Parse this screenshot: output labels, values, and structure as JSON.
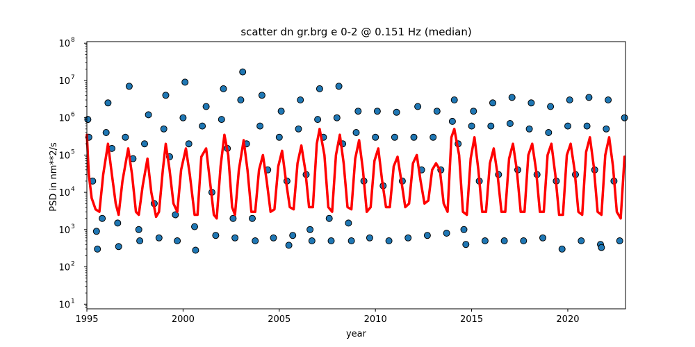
{
  "chart_data": {
    "type": "scatter",
    "title": "scatter dn gr.brg e 0-2 @ 0.151 Hz (median)",
    "xlabel": "year",
    "ylabel": "PSD in nm**2/s",
    "xlim": [
      1995.0,
      2023.0
    ],
    "ylim": [
      7.5,
      110000000
    ],
    "yscale": "log",
    "grid": false,
    "x_ticks": [
      1995,
      2000,
      2005,
      2010,
      2015,
      2020
    ],
    "y_ticks": [
      {
        "value": 10,
        "base": "10",
        "exp": "1"
      },
      {
        "value": 100,
        "base": "10",
        "exp": "2"
      },
      {
        "value": 1000,
        "base": "10",
        "exp": "3"
      },
      {
        "value": 10000,
        "base": "10",
        "exp": "4"
      },
      {
        "value": 100000,
        "base": "10",
        "exp": "5"
      },
      {
        "value": 1000000,
        "base": "10",
        "exp": "6"
      },
      {
        "value": 10000000,
        "base": "10",
        "exp": "7"
      },
      {
        "value": 100000000,
        "base": "10",
        "exp": "8"
      }
    ],
    "series": [
      {
        "kind": "scatter",
        "color": "#1f77b4",
        "edge_color": "#000000",
        "points": [
          [
            1995.05,
            900000
          ],
          [
            1995.1,
            300000
          ],
          [
            1995.3,
            20000
          ],
          [
            1995.5,
            900
          ],
          [
            1995.55,
            300
          ],
          [
            1995.8,
            2000
          ],
          [
            1996.0,
            400000
          ],
          [
            1996.1,
            2500000
          ],
          [
            1996.3,
            150000
          ],
          [
            1996.6,
            1500
          ],
          [
            1996.65,
            350
          ],
          [
            1997.0,
            300000
          ],
          [
            1997.2,
            7000000
          ],
          [
            1997.4,
            80000
          ],
          [
            1997.7,
            1000
          ],
          [
            1997.75,
            500
          ],
          [
            1998.0,
            200000
          ],
          [
            1998.2,
            1200000
          ],
          [
            1998.5,
            5000
          ],
          [
            1998.75,
            600
          ],
          [
            1999.0,
            500000
          ],
          [
            1999.1,
            4000000
          ],
          [
            1999.3,
            90000
          ],
          [
            1999.6,
            2500
          ],
          [
            1999.7,
            500
          ],
          [
            2000.0,
            1000000
          ],
          [
            2000.1,
            9000000
          ],
          [
            2000.3,
            200000
          ],
          [
            2000.6,
            1200
          ],
          [
            2000.65,
            280
          ],
          [
            2001.0,
            600000
          ],
          [
            2001.2,
            2000000
          ],
          [
            2001.5,
            10000
          ],
          [
            2001.7,
            700
          ],
          [
            2002.0,
            900000
          ],
          [
            2002.1,
            6000000
          ],
          [
            2002.3,
            150000
          ],
          [
            2002.6,
            2000
          ],
          [
            2002.7,
            600
          ],
          [
            2003.0,
            3000000
          ],
          [
            2003.1,
            17000000
          ],
          [
            2003.3,
            200000
          ],
          [
            2003.6,
            2000
          ],
          [
            2003.75,
            500
          ],
          [
            2004.0,
            600000
          ],
          [
            2004.1,
            4000000
          ],
          [
            2004.4,
            40000
          ],
          [
            2004.7,
            600
          ],
          [
            2005.0,
            300000
          ],
          [
            2005.1,
            1500000
          ],
          [
            2005.4,
            20000
          ],
          [
            2005.5,
            380
          ],
          [
            2005.7,
            700
          ],
          [
            2006.0,
            500000
          ],
          [
            2006.1,
            3000000
          ],
          [
            2006.4,
            30000
          ],
          [
            2006.6,
            1000
          ],
          [
            2006.7,
            500
          ],
          [
            2007.0,
            900000
          ],
          [
            2007.1,
            6000000
          ],
          [
            2007.3,
            300000
          ],
          [
            2007.6,
            2000
          ],
          [
            2007.7,
            500
          ],
          [
            2008.0,
            1000000
          ],
          [
            2008.1,
            7000000
          ],
          [
            2008.3,
            200000
          ],
          [
            2008.6,
            1500
          ],
          [
            2008.75,
            500
          ],
          [
            2009.0,
            400000
          ],
          [
            2009.1,
            1500000
          ],
          [
            2009.4,
            20000
          ],
          [
            2009.7,
            600
          ],
          [
            2010.0,
            300000
          ],
          [
            2010.1,
            1500000
          ],
          [
            2010.4,
            15000
          ],
          [
            2010.7,
            500
          ],
          [
            2011.0,
            300000
          ],
          [
            2011.1,
            1400000
          ],
          [
            2011.4,
            20000
          ],
          [
            2011.7,
            600
          ],
          [
            2012.0,
            300000
          ],
          [
            2012.2,
            2000000
          ],
          [
            2012.4,
            40000
          ],
          [
            2012.7,
            700
          ],
          [
            2013.0,
            300000
          ],
          [
            2013.2,
            1500000
          ],
          [
            2013.4,
            40000
          ],
          [
            2013.7,
            800
          ],
          [
            2014.0,
            800000
          ],
          [
            2014.1,
            3000000
          ],
          [
            2014.3,
            200000
          ],
          [
            2014.6,
            1000
          ],
          [
            2014.7,
            400
          ],
          [
            2015.0,
            600000
          ],
          [
            2015.1,
            1500000
          ],
          [
            2015.4,
            20000
          ],
          [
            2015.7,
            500
          ],
          [
            2016.0,
            600000
          ],
          [
            2016.1,
            2500000
          ],
          [
            2016.4,
            30000
          ],
          [
            2016.7,
            500
          ],
          [
            2017.0,
            700000
          ],
          [
            2017.1,
            3500000
          ],
          [
            2017.4,
            40000
          ],
          [
            2017.7,
            500
          ],
          [
            2018.0,
            500000
          ],
          [
            2018.1,
            2500000
          ],
          [
            2018.4,
            30000
          ],
          [
            2018.7,
            600
          ],
          [
            2019.0,
            400000
          ],
          [
            2019.1,
            2000000
          ],
          [
            2019.4,
            20000
          ],
          [
            2019.7,
            300
          ],
          [
            2020.0,
            600000
          ],
          [
            2020.1,
            3000000
          ],
          [
            2020.4,
            30000
          ],
          [
            2020.7,
            500
          ],
          [
            2021.0,
            600000
          ],
          [
            2021.1,
            3500000
          ],
          [
            2021.4,
            40000
          ],
          [
            2021.7,
            400
          ],
          [
            2021.75,
            330
          ],
          [
            2022.0,
            500000
          ],
          [
            2022.1,
            3000000
          ],
          [
            2022.4,
            20000
          ],
          [
            2022.7,
            500
          ],
          [
            2022.95,
            1000000
          ]
        ]
      },
      {
        "kind": "line",
        "color": "#ff0000",
        "points": [
          [
            1995.0,
            350000
          ],
          [
            1995.1,
            30000
          ],
          [
            1995.25,
            7000
          ],
          [
            1995.45,
            3500
          ],
          [
            1995.65,
            3000
          ],
          [
            1995.85,
            30000
          ],
          [
            1996.1,
            200000
          ],
          [
            1996.3,
            30000
          ],
          [
            1996.5,
            5000
          ],
          [
            1996.65,
            2500
          ],
          [
            1996.85,
            20000
          ],
          [
            1997.15,
            150000
          ],
          [
            1997.35,
            30000
          ],
          [
            1997.55,
            3000
          ],
          [
            1997.7,
            2500
          ],
          [
            1997.9,
            15000
          ],
          [
            1998.15,
            80000
          ],
          [
            1998.35,
            10000
          ],
          [
            1998.6,
            2200
          ],
          [
            1998.75,
            3000
          ],
          [
            1998.95,
            40000
          ],
          [
            1999.1,
            200000
          ],
          [
            1999.3,
            40000
          ],
          [
            1999.5,
            5000
          ],
          [
            1999.7,
            3000
          ],
          [
            1999.9,
            40000
          ],
          [
            2000.15,
            150000
          ],
          [
            2000.35,
            30000
          ],
          [
            2000.6,
            2500
          ],
          [
            2000.75,
            2500
          ],
          [
            2000.95,
            90000
          ],
          [
            2001.2,
            150000
          ],
          [
            2001.4,
            20000
          ],
          [
            2001.6,
            2500
          ],
          [
            2001.75,
            2000
          ],
          [
            2001.95,
            50000
          ],
          [
            2002.15,
            350000
          ],
          [
            2002.35,
            100000
          ],
          [
            2002.55,
            4000
          ],
          [
            2002.7,
            2500
          ],
          [
            2002.9,
            40000
          ],
          [
            2003.15,
            250000
          ],
          [
            2003.35,
            40000
          ],
          [
            2003.55,
            3000
          ],
          [
            2003.75,
            3000
          ],
          [
            2003.95,
            40000
          ],
          [
            2004.15,
            100000
          ],
          [
            2004.35,
            20000
          ],
          [
            2004.55,
            3000
          ],
          [
            2004.75,
            3500
          ],
          [
            2004.95,
            50000
          ],
          [
            2005.15,
            130000
          ],
          [
            2005.35,
            20000
          ],
          [
            2005.55,
            4000
          ],
          [
            2005.75,
            3500
          ],
          [
            2005.95,
            60000
          ],
          [
            2006.15,
            180000
          ],
          [
            2006.35,
            40000
          ],
          [
            2006.55,
            4000
          ],
          [
            2006.75,
            4000
          ],
          [
            2006.95,
            200000
          ],
          [
            2007.1,
            500000
          ],
          [
            2007.35,
            100000
          ],
          [
            2007.55,
            4000
          ],
          [
            2007.75,
            3000
          ],
          [
            2007.95,
            100000
          ],
          [
            2008.15,
            350000
          ],
          [
            2008.35,
            60000
          ],
          [
            2008.55,
            4000
          ],
          [
            2008.75,
            3500
          ],
          [
            2008.95,
            80000
          ],
          [
            2009.15,
            250000
          ],
          [
            2009.35,
            40000
          ],
          [
            2009.55,
            3000
          ],
          [
            2009.75,
            4000
          ],
          [
            2009.95,
            70000
          ],
          [
            2010.15,
            150000
          ],
          [
            2010.35,
            20000
          ],
          [
            2010.55,
            4000
          ],
          [
            2010.75,
            4000
          ],
          [
            2010.95,
            50000
          ],
          [
            2011.15,
            90000
          ],
          [
            2011.35,
            20000
          ],
          [
            2011.55,
            4000
          ],
          [
            2011.75,
            5000
          ],
          [
            2011.95,
            60000
          ],
          [
            2012.15,
            100000
          ],
          [
            2012.35,
            20000
          ],
          [
            2012.55,
            5000
          ],
          [
            2012.75,
            6000
          ],
          [
            2012.95,
            40000
          ],
          [
            2013.15,
            60000
          ],
          [
            2013.35,
            40000
          ],
          [
            2013.55,
            5000
          ],
          [
            2013.75,
            3000
          ],
          [
            2013.95,
            300000
          ],
          [
            2014.1,
            500000
          ],
          [
            2014.35,
            100000
          ],
          [
            2014.55,
            3000
          ],
          [
            2014.75,
            2500
          ],
          [
            2014.95,
            80000
          ],
          [
            2015.15,
            300000
          ],
          [
            2015.35,
            40000
          ],
          [
            2015.55,
            3000
          ],
          [
            2015.75,
            3000
          ],
          [
            2015.95,
            60000
          ],
          [
            2016.15,
            150000
          ],
          [
            2016.35,
            30000
          ],
          [
            2016.55,
            3000
          ],
          [
            2016.75,
            3000
          ],
          [
            2016.95,
            80000
          ],
          [
            2017.15,
            200000
          ],
          [
            2017.35,
            40000
          ],
          [
            2017.55,
            3000
          ],
          [
            2017.75,
            3000
          ],
          [
            2017.95,
            100000
          ],
          [
            2018.15,
            200000
          ],
          [
            2018.35,
            40000
          ],
          [
            2018.55,
            3000
          ],
          [
            2018.75,
            3000
          ],
          [
            2018.95,
            100000
          ],
          [
            2019.15,
            200000
          ],
          [
            2019.35,
            30000
          ],
          [
            2019.55,
            2500
          ],
          [
            2019.75,
            2500
          ],
          [
            2019.95,
            100000
          ],
          [
            2020.15,
            200000
          ],
          [
            2020.35,
            40000
          ],
          [
            2020.55,
            3000
          ],
          [
            2020.75,
            2500
          ],
          [
            2020.95,
            120000
          ],
          [
            2021.15,
            300000
          ],
          [
            2021.35,
            50000
          ],
          [
            2021.55,
            3000
          ],
          [
            2021.75,
            2500
          ],
          [
            2021.95,
            100000
          ],
          [
            2022.15,
            300000
          ],
          [
            2022.35,
            50000
          ],
          [
            2022.55,
            3000
          ],
          [
            2022.75,
            2000
          ],
          [
            2022.95,
            90000
          ]
        ]
      }
    ]
  }
}
